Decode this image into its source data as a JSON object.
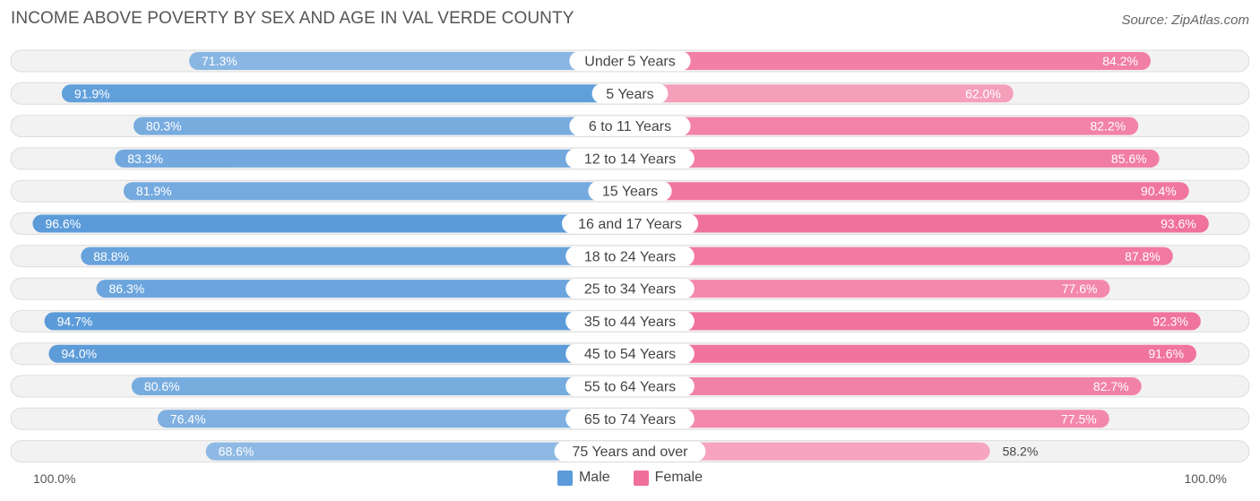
{
  "header": {
    "title": "INCOME ABOVE POVERTY BY SEX AND AGE IN VAL VERDE COUNTY",
    "source": "Source: ZipAtlas.com"
  },
  "axis": {
    "left_label": "100.0%",
    "right_label": "100.0%"
  },
  "legend": {
    "male_label": "Male",
    "female_label": "Female"
  },
  "colors": {
    "male_strong": "#5b9bd9",
    "male_light": "#a9c9ea",
    "female_strong": "#f06f9b",
    "female_light": "#f6a9c2",
    "track": "#eeeeee",
    "track_border": "#dddddd",
    "label_pill": "#ffffff",
    "text_dark": "#444444"
  },
  "chart_data": {
    "type": "bar",
    "orientation": "horizontal-diverging",
    "xlim": [
      0,
      100
    ],
    "unit": "%",
    "categories": [
      "Under 5 Years",
      "5 Years",
      "6 to 11 Years",
      "12 to 14 Years",
      "15 Years",
      "16 and 17 Years",
      "18 to 24 Years",
      "25 to 34 Years",
      "35 to 44 Years",
      "45 to 54 Years",
      "55 to 64 Years",
      "65 to 74 Years",
      "75 Years and over"
    ],
    "series": [
      {
        "name": "Male",
        "values": [
          71.3,
          91.9,
          80.3,
          83.3,
          81.9,
          96.6,
          88.8,
          86.3,
          94.7,
          94.0,
          80.6,
          76.4,
          68.6
        ],
        "labels": [
          "71.3%",
          "91.9%",
          "80.3%",
          "83.3%",
          "81.9%",
          "96.6%",
          "88.8%",
          "86.3%",
          "94.7%",
          "94.0%",
          "80.6%",
          "76.4%",
          "68.6%"
        ]
      },
      {
        "name": "Female",
        "values": [
          84.2,
          62.0,
          82.2,
          85.6,
          90.4,
          93.6,
          87.8,
          77.6,
          92.3,
          91.6,
          82.7,
          77.5,
          58.2
        ],
        "labels": [
          "84.2%",
          "62.0%",
          "82.2%",
          "85.6%",
          "90.4%",
          "93.6%",
          "87.8%",
          "77.6%",
          "92.3%",
          "91.6%",
          "82.7%",
          "77.5%",
          "58.2%"
        ]
      }
    ]
  }
}
